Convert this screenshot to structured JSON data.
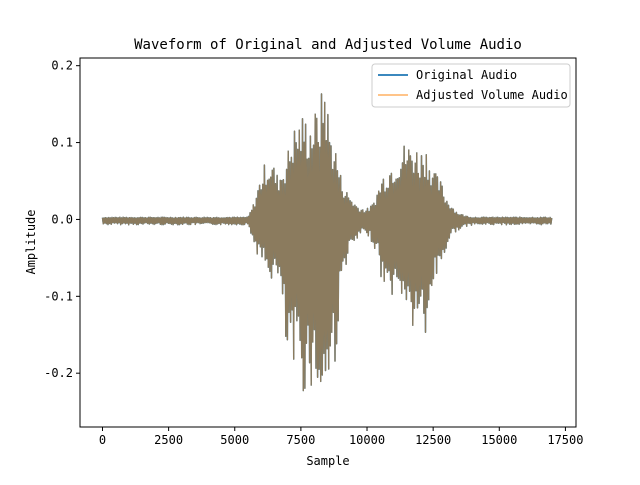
{
  "chart_data": {
    "type": "line",
    "title": "Waveform of Original and Adjusted Volume Audio",
    "xlabel": "Sample",
    "ylabel": "Amplitude",
    "xlim": [
      -850,
      17900
    ],
    "ylim": [
      -0.27,
      0.21
    ],
    "xticks": [
      0,
      2500,
      5000,
      7500,
      10000,
      12500,
      15000,
      17500
    ],
    "xtick_labels": [
      "0",
      "2500",
      "5000",
      "7500",
      "10000",
      "12500",
      "15000",
      "17500"
    ],
    "yticks": [
      -0.2,
      -0.1,
      0.0,
      0.1,
      0.2
    ],
    "ytick_labels": [
      "-0.2",
      "-0.1",
      "0.0",
      "0.1",
      "0.2"
    ],
    "grid": false,
    "legend_position": "top-right",
    "series": [
      {
        "name": "Original Audio",
        "color": "#1f77b4",
        "envelope": {
          "x": [
            0,
            5500,
            5700,
            6000,
            6200,
            6400,
            6600,
            6800,
            7000,
            7200,
            7400,
            7600,
            7800,
            8000,
            8200,
            8400,
            8600,
            8800,
            9000,
            9200,
            9400,
            9600,
            9800,
            10000,
            10200,
            10400,
            10600,
            10800,
            11000,
            11200,
            11400,
            11600,
            11800,
            12000,
            12200,
            12400,
            12600,
            12800,
            13000,
            13200,
            13400,
            13700,
            14000,
            17000
          ],
          "max": [
            0.003,
            0.003,
            0.02,
            0.06,
            0.08,
            0.08,
            0.06,
            0.07,
            0.09,
            0.12,
            0.13,
            0.14,
            0.13,
            0.14,
            0.15,
            0.19,
            0.12,
            0.1,
            0.06,
            0.04,
            0.03,
            0.02,
            0.015,
            0.014,
            0.02,
            0.04,
            0.06,
            0.07,
            0.08,
            0.09,
            0.1,
            0.1,
            0.1,
            0.09,
            0.1,
            0.08,
            0.06,
            0.05,
            0.03,
            0.02,
            0.01,
            0.005,
            0.003,
            0.003
          ],
          "min": [
            -0.007,
            -0.007,
            -0.03,
            -0.06,
            -0.07,
            -0.08,
            -0.08,
            -0.12,
            -0.2,
            -0.21,
            -0.19,
            -0.23,
            -0.21,
            -0.23,
            -0.24,
            -0.25,
            -0.21,
            -0.19,
            -0.1,
            -0.06,
            -0.04,
            -0.03,
            -0.02,
            -0.02,
            -0.03,
            -0.05,
            -0.09,
            -0.1,
            -0.1,
            -0.11,
            -0.1,
            -0.14,
            -0.15,
            -0.12,
            -0.2,
            -0.1,
            -0.08,
            -0.06,
            -0.04,
            -0.02,
            -0.015,
            -0.01,
            -0.007,
            -0.007
          ]
        }
      },
      {
        "name": "Adjusted Volume Audio",
        "color": "#ffbb78",
        "envelope": {
          "x": [
            0,
            5500,
            5700,
            6000,
            6200,
            6400,
            6600,
            6800,
            7000,
            7200,
            7400,
            7600,
            7800,
            8000,
            8200,
            8400,
            8600,
            8800,
            9000,
            9200,
            9400,
            9600,
            9800,
            10000,
            10200,
            10400,
            10600,
            10800,
            11000,
            11200,
            11400,
            11600,
            11800,
            12000,
            12200,
            12400,
            12600,
            12800,
            13000,
            13200,
            13400,
            13700,
            14000,
            17000
          ],
          "max": [
            0.003,
            0.003,
            0.02,
            0.06,
            0.08,
            0.08,
            0.06,
            0.07,
            0.09,
            0.12,
            0.13,
            0.14,
            0.13,
            0.14,
            0.15,
            0.19,
            0.12,
            0.1,
            0.06,
            0.04,
            0.03,
            0.02,
            0.015,
            0.014,
            0.02,
            0.04,
            0.06,
            0.07,
            0.08,
            0.09,
            0.1,
            0.1,
            0.1,
            0.09,
            0.1,
            0.08,
            0.06,
            0.05,
            0.03,
            0.02,
            0.01,
            0.005,
            0.003,
            0.003
          ],
          "min": [
            -0.007,
            -0.007,
            -0.03,
            -0.06,
            -0.07,
            -0.08,
            -0.08,
            -0.12,
            -0.2,
            -0.21,
            -0.19,
            -0.23,
            -0.21,
            -0.23,
            -0.24,
            -0.25,
            -0.21,
            -0.19,
            -0.1,
            -0.06,
            -0.04,
            -0.03,
            -0.02,
            -0.02,
            -0.03,
            -0.05,
            -0.09,
            -0.1,
            -0.1,
            -0.11,
            -0.1,
            -0.14,
            -0.15,
            -0.12,
            -0.2,
            -0.1,
            -0.08,
            -0.06,
            -0.04,
            -0.02,
            -0.015,
            -0.01,
            -0.007,
            -0.007
          ]
        }
      }
    ],
    "overlap_color": "#8b7b5e"
  }
}
